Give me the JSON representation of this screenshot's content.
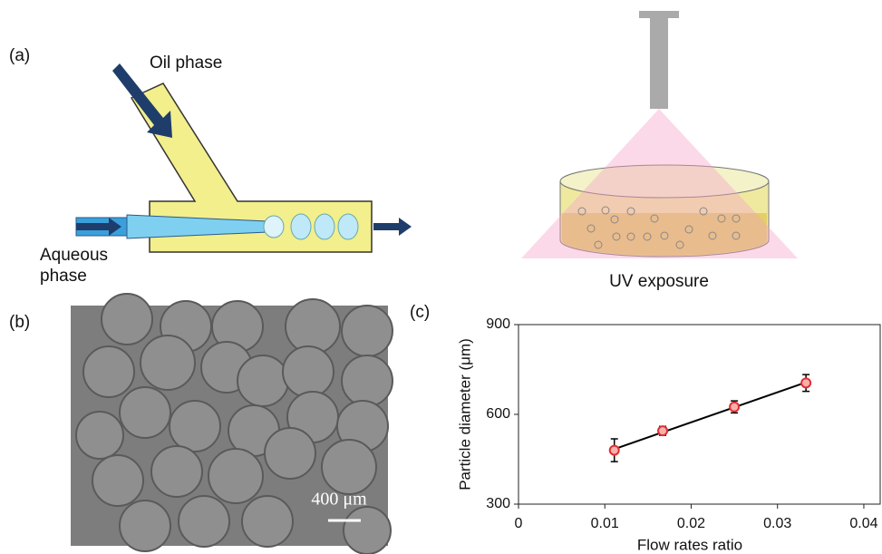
{
  "panels": {
    "a": {
      "label": "(a)",
      "oil": "Oil phase",
      "aqueous": "Aqueous phase",
      "uv": "UV exposure"
    },
    "b": {
      "label": "(b)",
      "scale": "400 μm"
    },
    "c": {
      "label": "(c)"
    }
  },
  "chart_data": {
    "type": "scatter",
    "xlabel": "Flow rates ratio",
    "ylabel": "Particle diameter (μm)",
    "x": [
      0.0111,
      0.0167,
      0.025,
      0.0333
    ],
    "values": [
      480,
      545,
      625,
      705
    ],
    "errors": [
      38,
      15,
      20,
      28
    ],
    "color": "#e03030",
    "trendline": true,
    "xlim": [
      0,
      0.042
    ],
    "xticks": [
      0,
      0.01,
      0.02,
      0.03,
      0.04
    ],
    "ylim": [
      300,
      900
    ],
    "yticks": [
      300,
      600,
      900
    ]
  }
}
